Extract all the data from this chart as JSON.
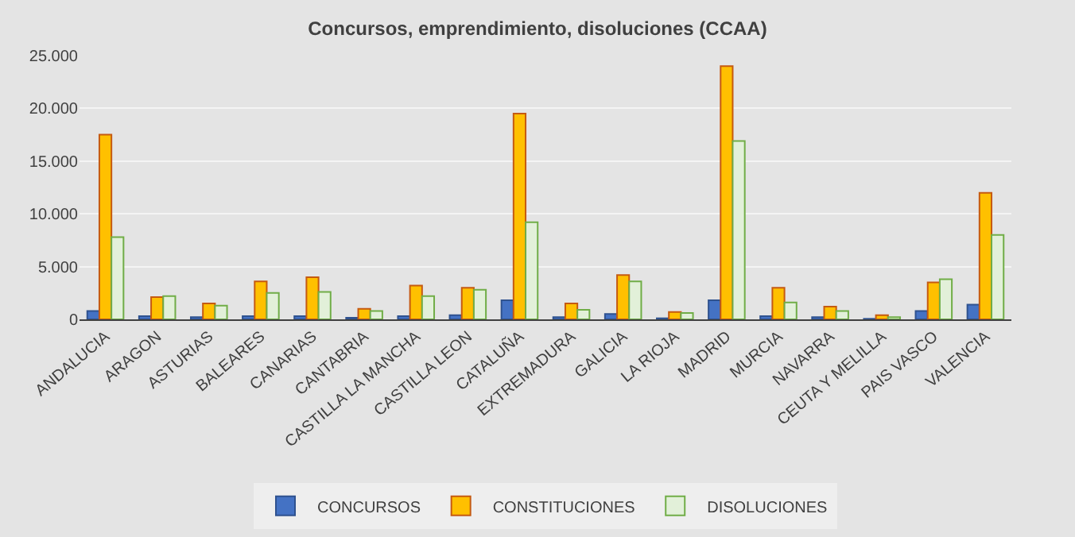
{
  "chart_data": {
    "type": "bar",
    "title": "Concursos, emprendimiento, disoluciones (CCAA)",
    "categories": [
      "ANDALUCIA",
      "ARAGON",
      "ASTURIAS",
      "BALEARES",
      "CANARIAS",
      "CANTABRIA",
      "CASTILLA LA MANCHA",
      "CASTILLA LEON",
      "CATALUÑA",
      "EXTREMADURA",
      "GALICIA",
      "LA RIOJA",
      "MADRID",
      "MURCIA",
      "NAVARRA",
      "CEUTA Y MELILLA",
      "PAIS VASCO",
      "VALENCIA"
    ],
    "series": [
      {
        "name": "CONCURSOS",
        "color": "#4472c4",
        "values": [
          800,
          300,
          200,
          300,
          300,
          150,
          300,
          400,
          1800,
          200,
          500,
          100,
          1800,
          300,
          200,
          50,
          800,
          1400
        ]
      },
      {
        "name": "CONSTITUCIONES",
        "color": "#ffc000",
        "values": [
          17500,
          2100,
          1500,
          3600,
          4000,
          1000,
          3200,
          3000,
          19500,
          1500,
          4200,
          700,
          24000,
          3000,
          1200,
          400,
          3500,
          12000
        ]
      },
      {
        "name": "DISOLUCIONES",
        "color": "#e2f0d9",
        "values": [
          7800,
          2200,
          1300,
          2500,
          2600,
          800,
          2200,
          2800,
          9200,
          900,
          3600,
          600,
          16900,
          1600,
          800,
          200,
          3800,
          8000
        ]
      }
    ],
    "ylim": [
      0,
      25000
    ],
    "yticks": [
      {
        "value": 0,
        "label": "0"
      },
      {
        "value": 5000,
        "label": "5.000"
      },
      {
        "value": 10000,
        "label": "10.000"
      },
      {
        "value": 15000,
        "label": "15.000"
      },
      {
        "value": 20000,
        "label": "20.000"
      },
      {
        "value": 25000,
        "label": "25.000"
      }
    ],
    "grid": "y",
    "legend": "bottom"
  }
}
